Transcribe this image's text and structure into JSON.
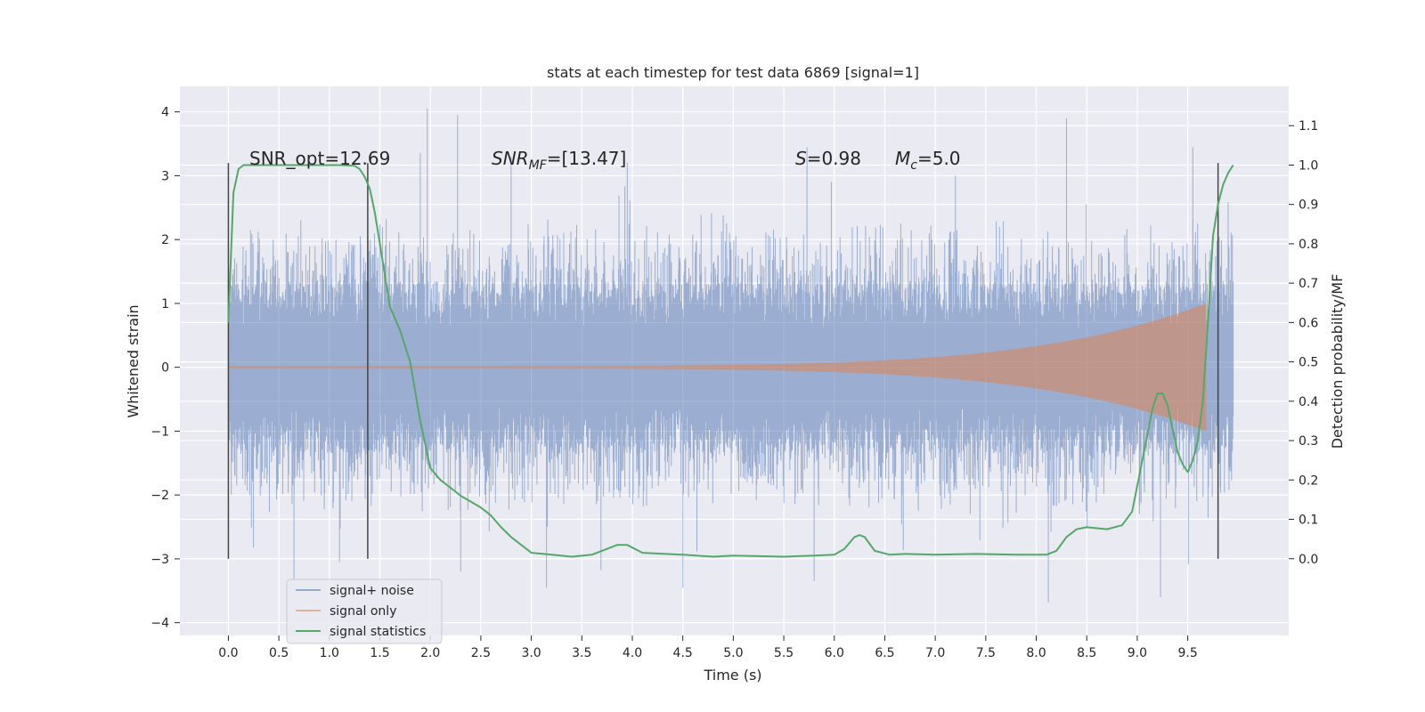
{
  "chart_data": {
    "type": "line",
    "title": "stats at each timestep for test data 6869 [signal=1]",
    "xlabel": "Time (s)",
    "ylabel_left": "Whitened strain",
    "ylabel_right": "Detection probability/MF",
    "xlim": [
      -0.48,
      10.5
    ],
    "ylim_left": [
      -4.2,
      4.4
    ],
    "ylim_right": [
      -0.195,
      1.2
    ],
    "x_ticks": [
      "0.0",
      "0.5",
      "1.0",
      "1.5",
      "2.0",
      "2.5",
      "3.0",
      "3.5",
      "4.0",
      "4.5",
      "5.0",
      "5.5",
      "6.0",
      "6.5",
      "7.0",
      "7.5",
      "8.0",
      "8.5",
      "9.0",
      "9.5"
    ],
    "y_left_ticks": [
      "4",
      "3",
      "2",
      "1",
      "0",
      "−1",
      "−2",
      "−3",
      "−4"
    ],
    "y_right_ticks": [
      "1.1",
      "1.0",
      "0.9",
      "0.8",
      "0.7",
      "0.6",
      "0.5",
      "0.4",
      "0.3",
      "0.2",
      "0.1",
      "0.0"
    ],
    "grid": true,
    "legend_position": "lower-left",
    "annotations": {
      "snr_opt": "SNR_opt=12.69",
      "snr_mf_main": "SNR",
      "snr_mf_sub": "MF",
      "snr_mf_value": "=[13.47]",
      "s_main": "S",
      "s_value": "=0.98",
      "mc_main": "M",
      "mc_sub": "c",
      "mc_value": "=5.0"
    },
    "vertical_lines_x": [
      0.0,
      1.38,
      9.8
    ],
    "vertical_lines_ylim": [
      -3.0,
      3.2
    ],
    "series": [
      {
        "name": "signal+ noise",
        "color": "#4c72b0",
        "x_range": [
          0.0,
          9.95
        ],
        "envelope_core": 1.35,
        "peaks": [
          {
            "x": 1.97,
            "y": 4.05
          },
          {
            "x": 2.27,
            "y": 3.95
          },
          {
            "x": 1.9,
            "y": 3.35
          },
          {
            "x": 8.3,
            "y": 3.9
          },
          {
            "x": 9.55,
            "y": 3.45
          },
          {
            "x": 5.73,
            "y": 3.45
          },
          {
            "x": 2.8,
            "y": 3.3
          },
          {
            "x": 3.95,
            "y": 3.2
          },
          {
            "x": 7.2,
            "y": 3.0
          },
          {
            "x": 0.65,
            "y": -3.35
          },
          {
            "x": 8.12,
            "y": -3.68
          },
          {
            "x": 9.23,
            "y": -3.6
          },
          {
            "x": 4.5,
            "y": -3.45
          },
          {
            "x": 3.15,
            "y": -3.45
          },
          {
            "x": 5.8,
            "y": -3.35
          },
          {
            "x": 2.3,
            "y": -3.2
          },
          {
            "x": 1.1,
            "y": -3.05
          }
        ]
      },
      {
        "name": "signal only",
        "color": "#dd8452",
        "x_range": [
          0.0,
          9.68
        ],
        "amplitude_start": 0.02,
        "amplitude_end": 1.0
      },
      {
        "name": "signal statistics",
        "color": "#55a868",
        "axis": "right",
        "x": [
          0.0,
          0.05,
          0.1,
          0.15,
          0.2,
          0.3,
          0.5,
          0.8,
          1.1,
          1.25,
          1.3,
          1.35,
          1.4,
          1.45,
          1.5,
          1.6,
          1.7,
          1.8,
          1.9,
          2.0,
          2.1,
          2.2,
          2.3,
          2.5,
          2.6,
          2.7,
          2.8,
          3.0,
          3.2,
          3.4,
          3.6,
          3.75,
          3.85,
          3.95,
          4.1,
          4.5,
          4.8,
          5.0,
          5.5,
          5.8,
          6.0,
          6.1,
          6.2,
          6.25,
          6.3,
          6.4,
          6.55,
          6.7,
          7.0,
          7.4,
          7.8,
          8.1,
          8.2,
          8.3,
          8.4,
          8.5,
          8.7,
          8.85,
          8.95,
          9.05,
          9.15,
          9.2,
          9.25,
          9.3,
          9.35,
          9.4,
          9.45,
          9.5,
          9.55,
          9.6,
          9.65,
          9.7,
          9.75,
          9.8,
          9.85,
          9.9,
          9.95
        ],
        "y": [
          0.6,
          0.93,
          0.99,
          1.0,
          1.0,
          1.0,
          1.0,
          1.0,
          1.0,
          0.998,
          0.99,
          0.97,
          0.94,
          0.88,
          0.8,
          0.64,
          0.58,
          0.5,
          0.35,
          0.23,
          0.2,
          0.18,
          0.16,
          0.13,
          0.11,
          0.08,
          0.055,
          0.015,
          0.01,
          0.005,
          0.01,
          0.025,
          0.035,
          0.035,
          0.015,
          0.01,
          0.005,
          0.008,
          0.005,
          0.008,
          0.01,
          0.025,
          0.055,
          0.06,
          0.055,
          0.02,
          0.01,
          0.012,
          0.01,
          0.012,
          0.01,
          0.01,
          0.02,
          0.055,
          0.075,
          0.08,
          0.075,
          0.085,
          0.12,
          0.25,
          0.38,
          0.42,
          0.42,
          0.39,
          0.33,
          0.27,
          0.24,
          0.22,
          0.25,
          0.3,
          0.4,
          0.6,
          0.82,
          0.9,
          0.95,
          0.98,
          1.0
        ]
      }
    ]
  }
}
